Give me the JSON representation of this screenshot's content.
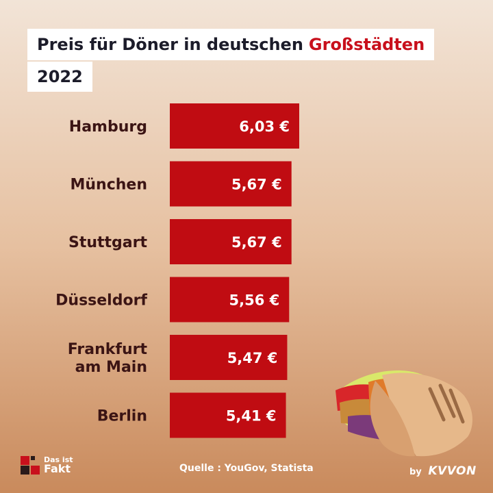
{
  "header": {
    "title_prefix": "Preis für Döner in deutschen",
    "title_highlight": "Großstädten",
    "year": "2022"
  },
  "chart_data": {
    "type": "bar",
    "orientation": "horizontal",
    "categories": [
      "Hamburg",
      "München",
      "Stuttgart",
      "Düsseldorf",
      "Frankfurt am Main",
      "Berlin"
    ],
    "category_lines": [
      [
        "Hamburg"
      ],
      [
        "München"
      ],
      [
        "Stuttgart"
      ],
      [
        "Düsseldorf"
      ],
      [
        "Frankfurt",
        "am Main"
      ],
      [
        "Berlin"
      ]
    ],
    "values": [
      6.03,
      5.67,
      5.67,
      5.56,
      5.47,
      5.41
    ],
    "value_labels": [
      "6,03 €",
      "5,67 €",
      "5,67 €",
      "5,56 €",
      "5,47 €",
      "5,41 €"
    ],
    "bar_color": "#c00c12",
    "grid": false,
    "legend": "none"
  },
  "footer": {
    "source": "Quelle : YouGov, Statista",
    "logo_line1": "Das ist",
    "logo_line2": "Fakt",
    "brand_by": "by",
    "brand_name": "KVVON"
  },
  "colors": {
    "accent": "#c8101c",
    "bar": "#c00c12",
    "label": "#3b1414"
  },
  "illustration": "doner-wrap-icon"
}
